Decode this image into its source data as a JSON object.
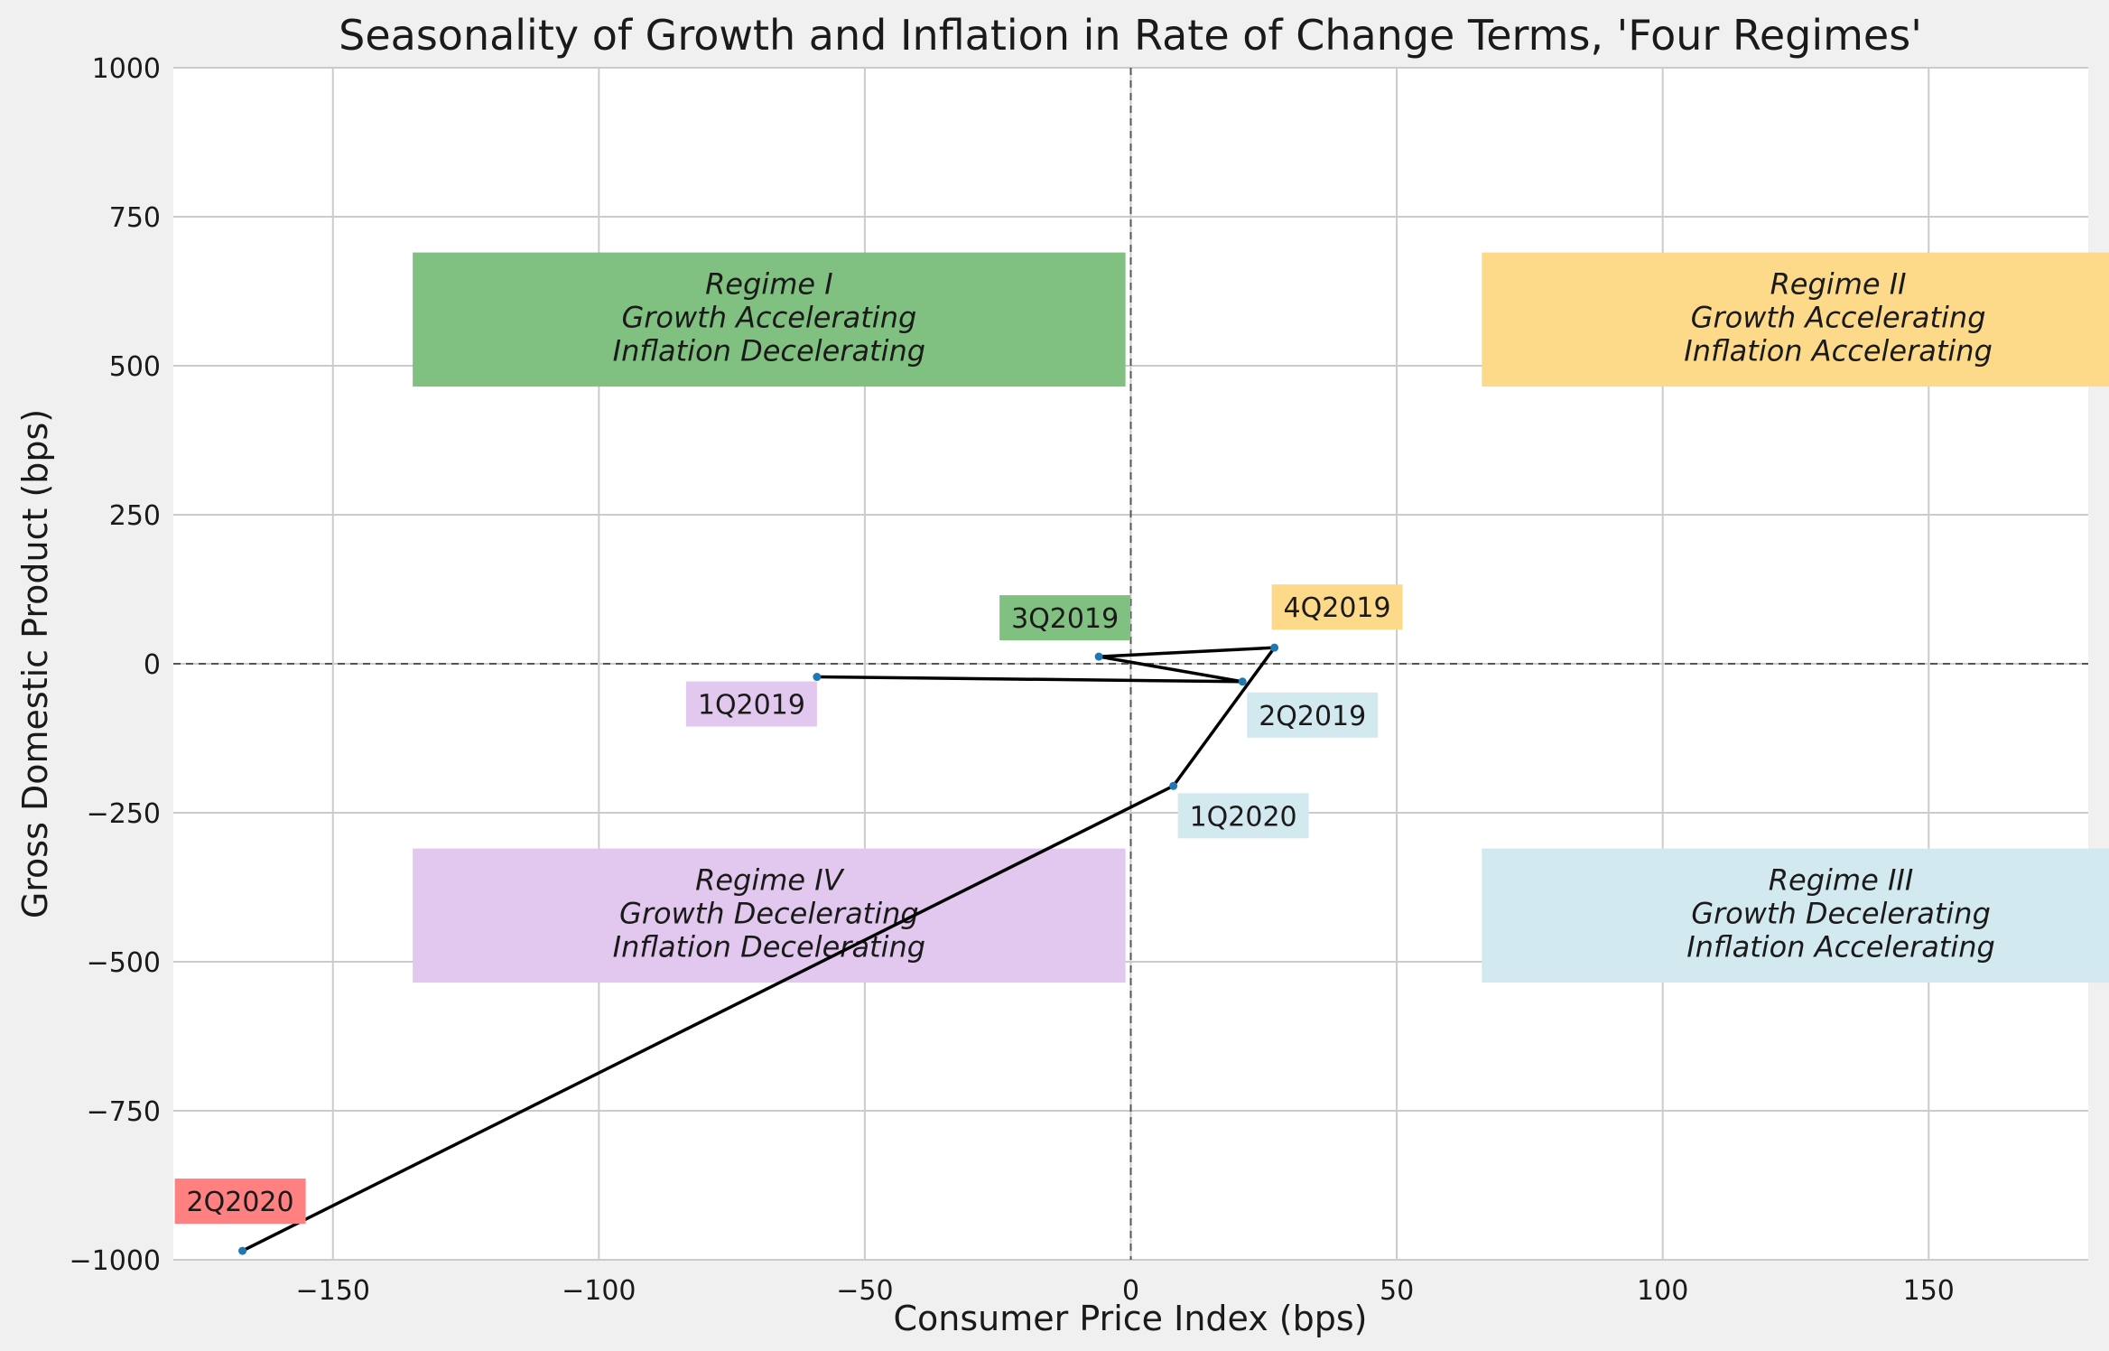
{
  "chart_data": {
    "type": "line",
    "title": "Seasonality of Growth and Inflation in Rate of Change Terms, 'Four Regimes'",
    "xlabel": "Consumer Price Index (bps)",
    "ylabel": "Gross Domestic Product (bps)",
    "xlim": [
      -180,
      180
    ],
    "ylim": [
      -1000,
      1000
    ],
    "xticks": [
      -150,
      -100,
      -50,
      0,
      50,
      100,
      150
    ],
    "xtick_labels": [
      "−150",
      "−100",
      "−50",
      "0",
      "50",
      "100",
      "150"
    ],
    "yticks": [
      -1000,
      -750,
      -500,
      -250,
      0,
      250,
      500,
      750,
      1000
    ],
    "ytick_labels": [
      "−1000",
      "−750",
      "−500",
      "−250",
      "0",
      "250",
      "500",
      "750",
      "1000"
    ],
    "grid": true,
    "line_color": "#000000",
    "point_color": "#1f77b4",
    "points": [
      {
        "label": "1Q2019",
        "x": -59,
        "y": -22,
        "color": "#e2c8ee"
      },
      {
        "label": "2Q2019",
        "x": 21,
        "y": -30,
        "color": "#d3e9f0"
      },
      {
        "label": "3Q2019",
        "x": -6,
        "y": 12,
        "color": "#80c080"
      },
      {
        "label": "4Q2019",
        "x": 27,
        "y": 27,
        "color": "#fdd98a"
      },
      {
        "label": "1Q2020",
        "x": 8,
        "y": -205,
        "color": "#d3e9f0"
      },
      {
        "label": "2Q2020",
        "x": -167,
        "y": -985,
        "color": "#ff8080"
      }
    ],
    "regimes": [
      {
        "lines": [
          "Regime I",
          "Growth Accelerating",
          "Inflation Decelerating"
        ],
        "color": "#80c080"
      },
      {
        "lines": [
          "Regime II",
          "Growth Accelerating",
          "Inflation Accelerating"
        ],
        "color": "#fdd98a"
      },
      {
        "lines": [
          "Regime III",
          "Growth Decelerating",
          "Inflation Accelerating"
        ],
        "color": "#d3e9f0"
      },
      {
        "lines": [
          "Regime IV",
          "Growth Decelerating",
          "Inflation Decelerating"
        ],
        "color": "#e2c8ee"
      }
    ]
  }
}
